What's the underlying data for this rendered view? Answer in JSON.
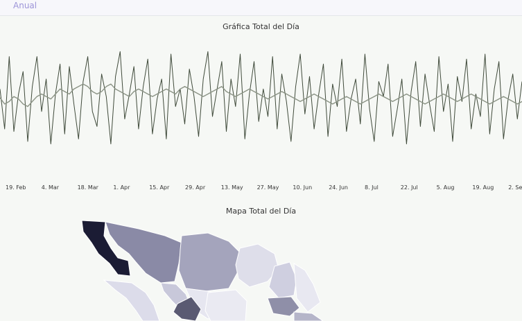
{
  "tabs": [
    {
      "label": "Anual"
    }
  ],
  "line_chart": {
    "title": "Gráfica Total del Día",
    "x_ticks": [
      "19. Feb",
      "4. Mar",
      "18. Mar",
      "1. Apr",
      "15. Apr",
      "29. Apr",
      "13. May",
      "27. May",
      "10. Jun",
      "24. Jun",
      "8. Jul",
      "22. Jul",
      "5. Aug",
      "19. Aug",
      "2. Se"
    ]
  },
  "map": {
    "title": "Mapa Total del Día"
  },
  "colors": {
    "accent": "#9d94d8",
    "series_raw": "#3f4a3a",
    "series_avg": "#8b9385",
    "map_dark": "#1b1c34"
  },
  "chart_data": {
    "type": "line",
    "title": "Gráfica Total del Día",
    "x_start": "14. Feb",
    "x_end": "2. Sep",
    "x_step_days": 2,
    "series": [
      {
        "values": [
          62,
          30,
          88,
          28,
          58,
          76,
          20,
          64,
          88,
          44,
          70,
          18,
          58,
          82,
          26,
          80,
          50,
          22,
          68,
          88,
          44,
          32,
          74,
          56,
          18,
          72,
          92,
          38,
          58,
          80,
          30,
          64,
          86,
          26,
          54,
          70,
          22,
          90,
          48,
          62,
          34,
          78,
          56,
          24,
          70,
          92,
          40,
          62,
          84,
          28,
          70,
          48,
          90,
          22,
          58,
          84,
          36,
          62,
          40,
          88,
          30,
          74,
          52,
          20,
          64,
          90,
          42,
          72,
          30,
          58,
          82,
          24,
          66,
          48,
          86,
          28,
          54,
          70,
          34,
          90,
          46,
          20,
          68,
          56,
          82,
          24,
          46,
          70,
          18,
          60,
          84,
          32,
          74,
          50,
          28,
          88,
          44,
          66,
          20,
          72,
          52,
          86,
          30,
          58,
          40,
          90,
          26,
          62,
          84,
          22,
          54,
          74,
          38,
          68
        ]
      },
      {
        "values": [
          55,
          50,
          52,
          56,
          54,
          50,
          48,
          52,
          56,
          58,
          56,
          54,
          58,
          62,
          60,
          58,
          62,
          64,
          66,
          64,
          60,
          58,
          60,
          64,
          66,
          62,
          60,
          58,
          56,
          60,
          62,
          60,
          58,
          56,
          58,
          60,
          62,
          60,
          58,
          62,
          64,
          62,
          60,
          58,
          56,
          58,
          60,
          62,
          64,
          60,
          58,
          56,
          58,
          60,
          62,
          60,
          58,
          56,
          54,
          56,
          58,
          60,
          58,
          56,
          54,
          52,
          54,
          56,
          58,
          56,
          54,
          52,
          50,
          52,
          54,
          56,
          54,
          52,
          50,
          52,
          54,
          56,
          58,
          56,
          54,
          52,
          54,
          56,
          58,
          56,
          54,
          52,
          50,
          52,
          54,
          56,
          58,
          56,
          54,
          52,
          54,
          56,
          58,
          56,
          54,
          52,
          50,
          52,
          54,
          56,
          54,
          52,
          50,
          52
        ]
      }
    ]
  }
}
